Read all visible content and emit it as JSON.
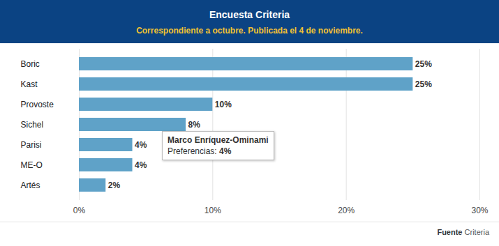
{
  "chart_data": {
    "type": "bar",
    "orientation": "horizontal",
    "title": "Encuesta Criteria",
    "subtitle": "Correspondiente a octubre. Publicada el 4 de noviembre.",
    "categories": [
      "Boric",
      "Kast",
      "Provoste",
      "Sichel",
      "Parisi",
      "ME-O",
      "Artés"
    ],
    "values": [
      25,
      25,
      10,
      8,
      4,
      4,
      2
    ],
    "value_labels": [
      "25%",
      "25%",
      "10%",
      "8%",
      "4%",
      "4%",
      "2%"
    ],
    "data_labels": true,
    "color": "#5fa2c8",
    "xlim": [
      0,
      30
    ],
    "xticks": [
      {
        "value": 0,
        "label": "0%"
      },
      {
        "value": 10,
        "label": "10%"
      },
      {
        "value": 20,
        "label": "20%"
      },
      {
        "value": 30,
        "label": "30%"
      }
    ],
    "grid": true,
    "annotation": {
      "title": "Marco Enríquez-Ominami",
      "label": "Preferencias:",
      "value_label": "4%"
    },
    "source_label": "Fuente",
    "source": "Criteria"
  }
}
